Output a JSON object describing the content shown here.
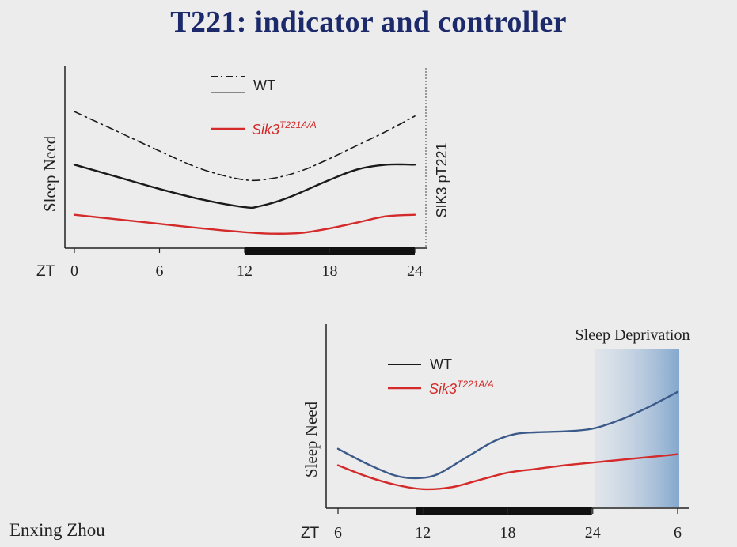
{
  "slide": {
    "title": "T221: indicator and controller",
    "author": "Enxing Zhou"
  },
  "colors": {
    "title": "#1c2a6b",
    "wt_line": "#1a1a1a",
    "mutant_line": "#d42a2a",
    "wt_line_sd": "#3b5a8a",
    "dark_bar": "#111111",
    "sd_band": "#8fb0d4"
  },
  "chart_data": [
    {
      "type": "line",
      "xlabel_prefix": "ZT",
      "ylabel": "Sleep Need",
      "ylabel_right": "SIK3 pT221",
      "x_ticks": [
        "0",
        "6",
        "12",
        "18",
        "24"
      ],
      "xlim": [
        0,
        24
      ],
      "ylim": [
        0,
        10
      ],
      "dark_phase": [
        12,
        24
      ],
      "legend": [
        {
          "label": "WT",
          "sup": ""
        },
        {
          "label": "Sik3",
          "sup": "T221A/A"
        }
      ],
      "series": [
        {
          "role": "wt_phospho",
          "style": "dashdot",
          "x": [
            0,
            3,
            6,
            9,
            12,
            14,
            16,
            18,
            20,
            22,
            24
          ],
          "y": [
            8.9,
            7.6,
            6.3,
            5.1,
            4.4,
            4.5,
            5.0,
            5.8,
            6.7,
            7.6,
            8.6
          ]
        },
        {
          "role": "wt_sleep_need",
          "style": "solid",
          "x": [
            0,
            3,
            6,
            9,
            12,
            13,
            15,
            18,
            20,
            22,
            24
          ],
          "y": [
            5.4,
            4.6,
            3.8,
            3.1,
            2.6,
            2.65,
            3.2,
            4.4,
            5.1,
            5.4,
            5.4
          ]
        },
        {
          "role": "mutant_sleep_need",
          "style": "solid",
          "x": [
            0,
            3,
            6,
            9,
            12,
            14,
            16,
            18,
            20,
            22,
            24
          ],
          "y": [
            2.1,
            1.8,
            1.5,
            1.2,
            0.95,
            0.85,
            0.9,
            1.2,
            1.6,
            2.0,
            2.1
          ]
        }
      ]
    },
    {
      "type": "line",
      "xlabel_prefix": "ZT",
      "ylabel": "Sleep Need",
      "x_ticks": [
        "6",
        "12",
        "18",
        "24",
        "6"
      ],
      "xlim": [
        6,
        30
      ],
      "ylim": [
        0,
        10
      ],
      "dark_phase": [
        12,
        24
      ],
      "shaded_region": {
        "label": "Sleep Deprivation",
        "x": [
          24,
          30
        ]
      },
      "legend": [
        {
          "label": "WT",
          "sup": ""
        },
        {
          "label": "Sik3",
          "sup": "T221A/A"
        }
      ],
      "series": [
        {
          "role": "wt",
          "x": [
            6,
            8,
            10,
            11.5,
            13,
            15,
            17,
            18.5,
            20,
            22,
            24,
            26,
            28,
            30
          ],
          "y": [
            3.2,
            2.4,
            1.75,
            1.6,
            1.8,
            2.7,
            3.6,
            4.0,
            4.1,
            4.15,
            4.3,
            4.8,
            5.5,
            6.3
          ]
        },
        {
          "role": "mutant",
          "x": [
            6,
            8,
            10,
            12,
            14,
            16,
            18,
            20,
            22,
            24,
            26,
            28,
            30
          ],
          "y": [
            2.3,
            1.7,
            1.25,
            1.0,
            1.1,
            1.5,
            1.9,
            2.1,
            2.3,
            2.45,
            2.6,
            2.75,
            2.9
          ]
        }
      ]
    }
  ]
}
